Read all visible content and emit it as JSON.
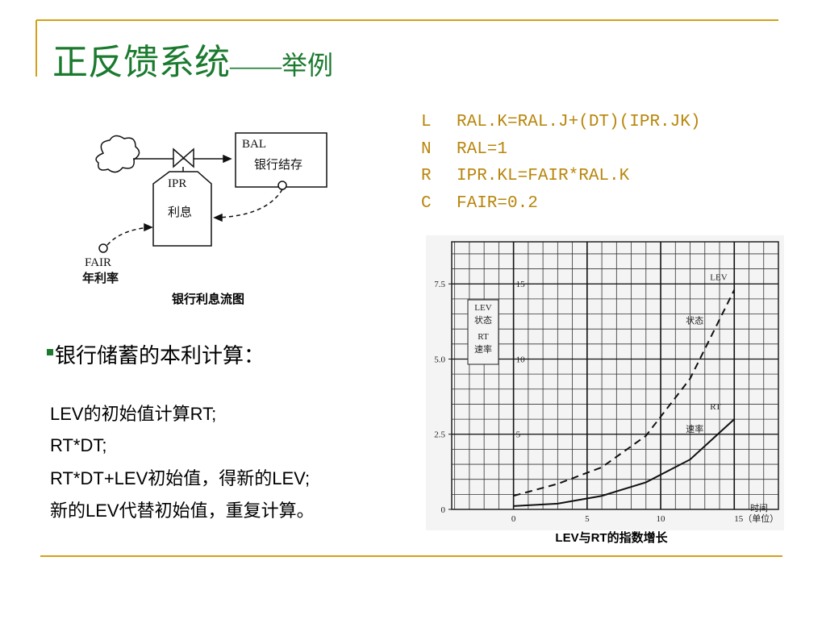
{
  "title": {
    "main": "正反馈系统",
    "sub": "——举例"
  },
  "equations": [
    {
      "code": "L",
      "text": "RAL.K=RAL.J+(DT)(IPR.JK)"
    },
    {
      "code": "N",
      "text": "RAL=1"
    },
    {
      "code": "R",
      "text": "IPR.KL=FAIR*RAL.K"
    },
    {
      "code": "C",
      "text": "FAIR=0.2"
    }
  ],
  "diagram": {
    "level": "BAL",
    "level_cn": "银行结存",
    "rate": "IPR",
    "rate_cn": "利息",
    "aux": "FAIR",
    "aux_cn": "年利率",
    "caption": "银行利息流图"
  },
  "bullet": "银行储蓄的本利计算：",
  "steps": [
    "LEV的初始值计算RT;",
    "RT*DT;",
    "RT*DT+LEV初始值，得新的LEV;",
    "新的LEV代替初始值，重复计算。"
  ],
  "chart_data": {
    "type": "line",
    "title": "LEV与RT的指数增长",
    "x_label": "时间",
    "x": [
      0,
      3,
      6,
      9,
      12,
      15
    ],
    "series": [
      {
        "name": "LEV",
        "desc": "状态",
        "color": "#111111",
        "dashed": true,
        "values": [
          0.9,
          1.7,
          2.8,
          4.9,
          8.7,
          14.6
        ]
      },
      {
        "name": "RT",
        "desc": "速率",
        "color": "#111111",
        "dashed": false,
        "axis": "y2",
        "values": [
          0.11,
          0.19,
          0.45,
          0.9,
          1.66,
          3.0
        ]
      }
    ],
    "xlim": [
      -4.2,
      18
    ],
    "xticks": [
      0,
      5,
      10,
      {
        "value": 15,
        "label": "15（单位）"
      }
    ],
    "ylim": [
      0,
      17.8
    ],
    "yticks": [
      5,
      10,
      15
    ],
    "y2lim": [
      0,
      8.9
    ],
    "y2ticks": [
      0,
      2.5,
      {
        "value": 5,
        "label": "5.0"
      },
      7.5
    ],
    "grid": true
  }
}
